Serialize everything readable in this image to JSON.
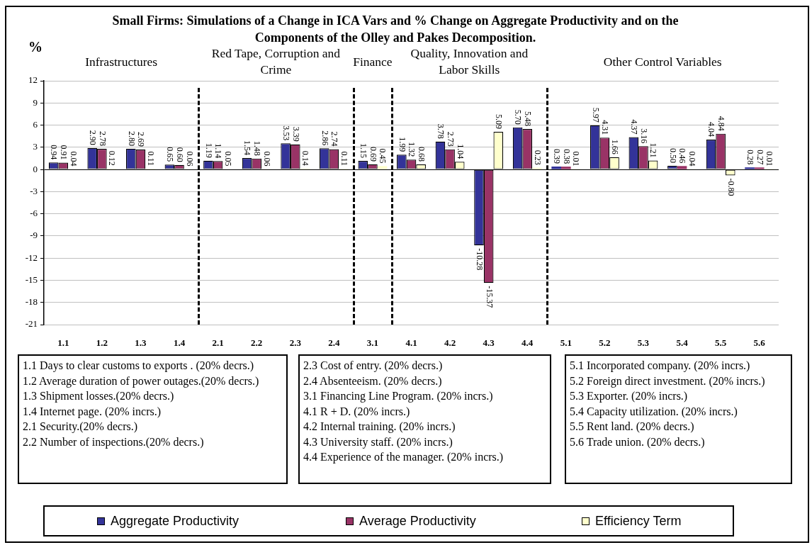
{
  "chart_data": {
    "type": "bar",
    "title": "Small Firms: Simulations of a Change in ICA Vars and % Change on Aggregate Productivity and on the Components of the Olley and Pakes Decomposition.",
    "ylabel": "%",
    "categories": [
      "1.1",
      "1.2",
      "1.3",
      "1.4",
      "2.1",
      "2.2",
      "2.3",
      "2.4",
      "3.1",
      "4.1",
      "4.2",
      "4.3",
      "4.4",
      "5.1",
      "5.2",
      "5.3",
      "5.4",
      "5.5",
      "5.6"
    ],
    "series": [
      {
        "name": "Aggregate Productivity",
        "color": "#333399",
        "values": [
          0.94,
          2.9,
          2.8,
          0.65,
          1.19,
          1.54,
          3.53,
          2.86,
          1.15,
          1.99,
          3.78,
          -10.28,
          5.7,
          0.39,
          5.97,
          4.37,
          0.5,
          4.04,
          0.28
        ],
        "value_labels": [
          "0.94",
          "2.90",
          "2.80",
          "0.65",
          "1.19",
          "1.54",
          "3.53",
          "2.86",
          "1.15",
          "1.99",
          "3.78",
          "-10.28",
          "5.70",
          "0.39",
          "5.97",
          "4.37",
          "0.50",
          "4.04",
          "0.28"
        ]
      },
      {
        "name": "Average Productivity",
        "color": "#993366",
        "values": [
          0.91,
          2.78,
          2.69,
          0.6,
          1.14,
          1.48,
          3.39,
          2.74,
          0.69,
          1.32,
          2.73,
          -15.37,
          5.48,
          0.38,
          4.31,
          3.16,
          0.46,
          4.84,
          0.27
        ],
        "value_labels": [
          "0.91",
          "2.78",
          "2.69",
          "0.60",
          "1.14",
          "1.48",
          "3.39",
          "2.74",
          "0.69",
          "1.32",
          "2.73",
          "-15.37",
          "5.48",
          "0.38",
          "4.31",
          "3.16",
          "0.46",
          "4.84",
          "0.27"
        ]
      },
      {
        "name": "Efficiency Term",
        "color": "#ffffcc",
        "values": [
          0.04,
          0.12,
          0.11,
          0.06,
          0.05,
          0.06,
          0.14,
          0.11,
          0.45,
          0.68,
          1.04,
          5.09,
          0.23,
          0.01,
          1.66,
          1.21,
          0.04,
          -0.8,
          0.01
        ],
        "value_labels": [
          "0.04",
          "0.12",
          "0.11",
          "0.06",
          "0.05",
          "0.06",
          "0.14",
          "0.11",
          "0.45",
          "0.68",
          "1.04",
          "5.09",
          "0.23",
          "0.01",
          "1.66",
          "1.21",
          "0.04",
          "-0.80",
          "0.01"
        ]
      }
    ],
    "ylim": [
      -21,
      12
    ],
    "yticks": [
      -21,
      -18,
      -15,
      -12,
      -9,
      -6,
      -3,
      0,
      3,
      6,
      9,
      12
    ],
    "grid": "y",
    "legend": "bottom",
    "annotations": [
      "Infrastructures",
      "Red Tape, Corruption and Crime",
      "Finance",
      "Quality, Innovation and Labor Skills",
      "Other Control Variables",
      "1.1 Days to clear customs to exports . (20% decrs.)\n1.2 Average duration of power outages.(20% decrs.)\n1.3 Shipment losses.(20% decrs.)\n1.4 Internet page. (20% incrs.)\n2.1 Security.(20% decrs.)\n2.2 Number of inspections.(20% decrs.)",
      "2.3 Cost of entry. (20% decrs.)\n2.4 Absenteeism. (20% decrs.)\n3.1 Financing Line Program. (20% incrs.)\n4.1 R + D. (20% incrs.)\n4.2 Internal training. (20% incrs.)\n4.3 University staff. (20% incrs.)\n4.4 Experience of the manager. (20% incrs.)",
      "5.1 Incorporated company. (20% incrs.)\n5.2 Foreign direct investment. (20% incrs.)\n5.3 Exporter. (20% incrs.)\n5.4 Capacity utilization. (20% incrs.)\n5.5 Rent land. (20% decrs.)\n5.6 Trade union. (20% decrs.)"
    ]
  }
}
